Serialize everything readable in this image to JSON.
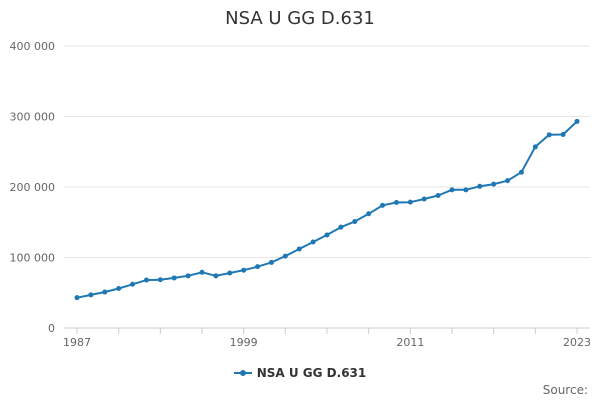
{
  "chart_data": {
    "type": "line",
    "title": "NSA U GG D.631",
    "x": [
      1987,
      1988,
      1989,
      1990,
      1991,
      1992,
      1993,
      1994,
      1995,
      1996,
      1997,
      1998,
      1999,
      2000,
      2001,
      2002,
      2003,
      2004,
      2005,
      2006,
      2007,
      2008,
      2009,
      2010,
      2011,
      2012,
      2013,
      2014,
      2015,
      2016,
      2017,
      2018,
      2019,
      2020,
      2021,
      2022,
      2023
    ],
    "series": [
      {
        "name": "NSA U GG D.631",
        "color": "#1f78b4",
        "values": [
          43000,
          47000,
          51000,
          56000,
          62000,
          68000,
          68500,
          71000,
          74000,
          79000,
          74000,
          78000,
          82000,
          87000,
          93000,
          102000,
          112000,
          122000,
          132000,
          143000,
          151000,
          162000,
          174000,
          178000,
          178500,
          183000,
          188000,
          196000,
          196000,
          201000,
          204000,
          209000,
          221000,
          257000,
          274000,
          274500,
          293000
        ]
      }
    ],
    "xlim": [
      1987,
      2023
    ],
    "ylim": [
      0,
      400000
    ],
    "yticks": [
      0,
      100000,
      200000,
      300000,
      400000
    ],
    "ytick_labels": [
      "0",
      "100 000",
      "200 000",
      "300 000",
      "400 000"
    ],
    "xtick_labels": [
      "1987",
      "1999",
      "2011",
      "2023"
    ],
    "xlabel": "",
    "ylabel": "",
    "legend": "bottom-center",
    "grid": true
  },
  "source_label": "Source:"
}
